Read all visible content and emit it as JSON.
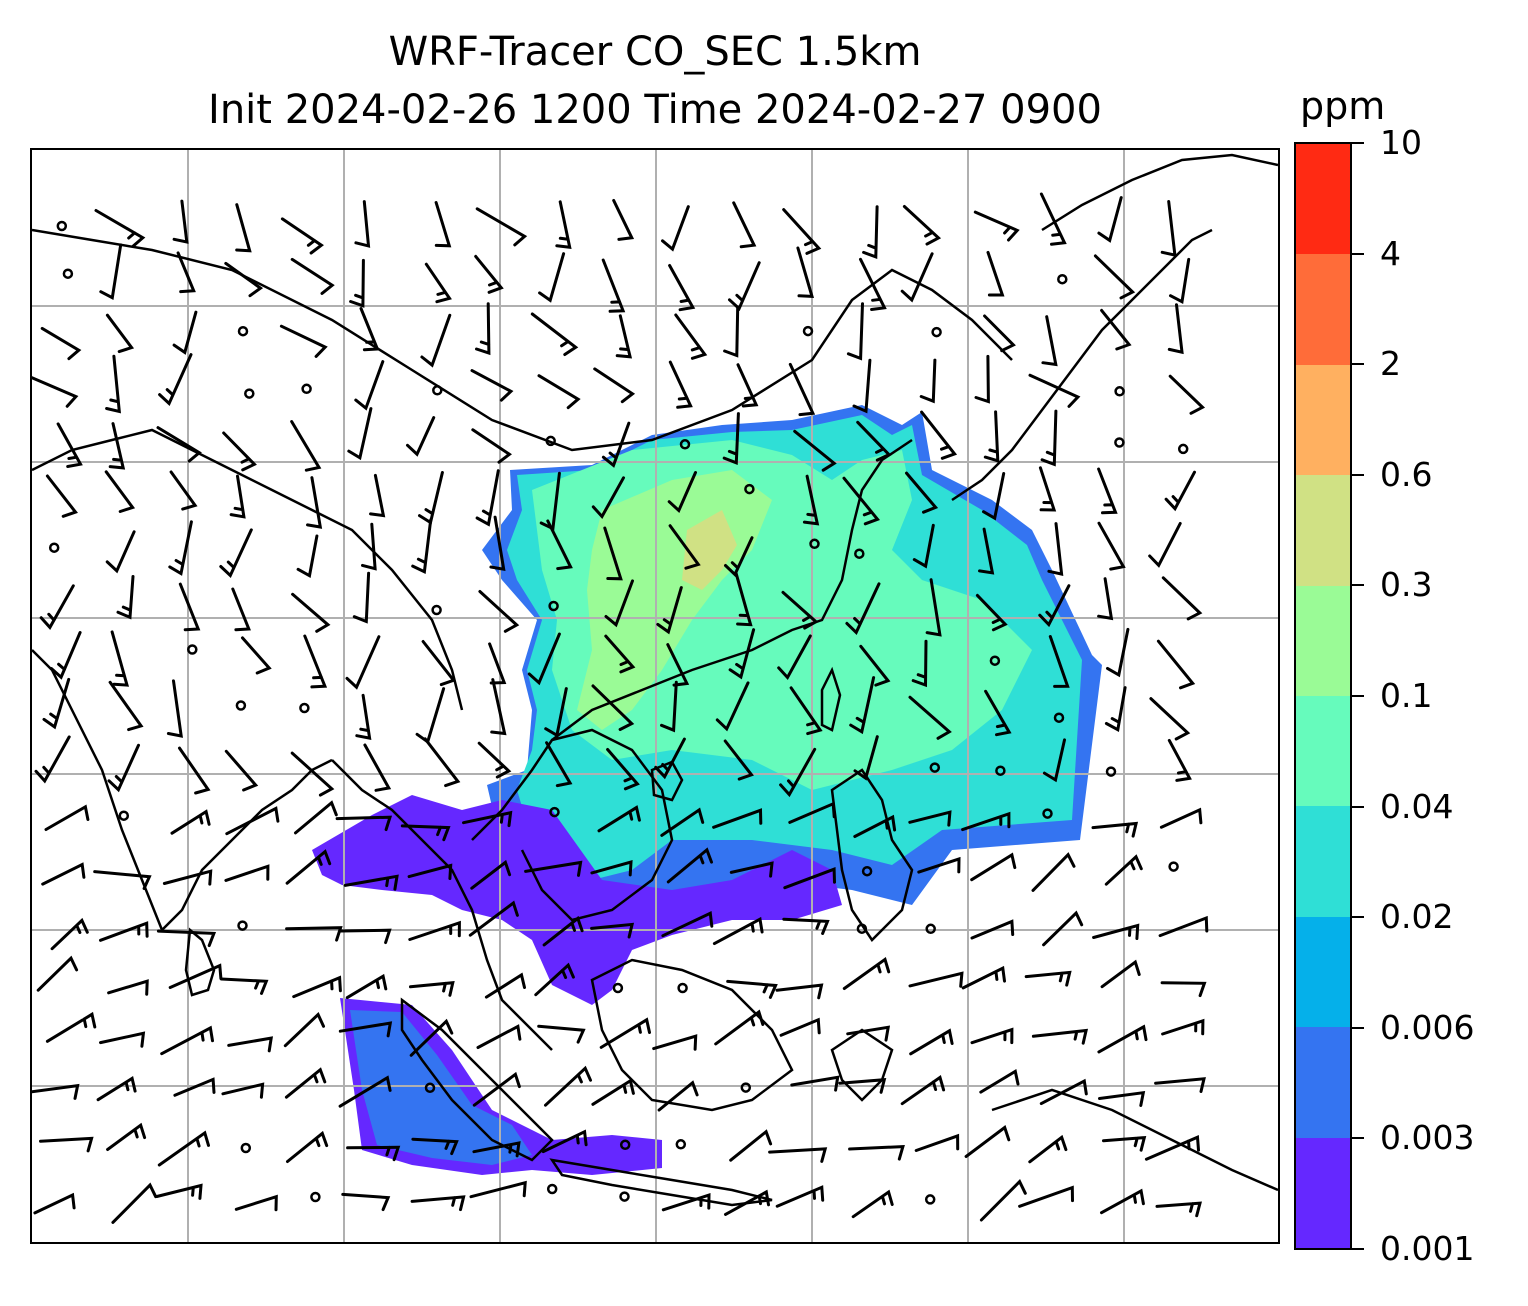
{
  "title": {
    "line1": "WRF-Tracer CO_SEC 1.5km",
    "line2": "Init 2024-02-26 1200 Time 2024-02-27 0900"
  },
  "map": {
    "variable": "CO_SEC",
    "overlay": "wind barbs",
    "gridlines": true,
    "frame_color": "#000000",
    "grid_color": "#b0b0b0"
  },
  "colorbar": {
    "unit": "ppm",
    "levels": [
      "0.001",
      "0.003",
      "0.006",
      "0.02",
      "0.04",
      "0.1",
      "0.3",
      "0.6",
      "2",
      "4",
      "10"
    ],
    "colors": [
      "#6528ff",
      "#3474f1",
      "#05b0ea",
      "#2fdfd6",
      "#66fbbc",
      "#9afb96",
      "#d0e184",
      "#ffb060",
      "#ff6c39",
      "#ff2a13"
    ]
  }
}
